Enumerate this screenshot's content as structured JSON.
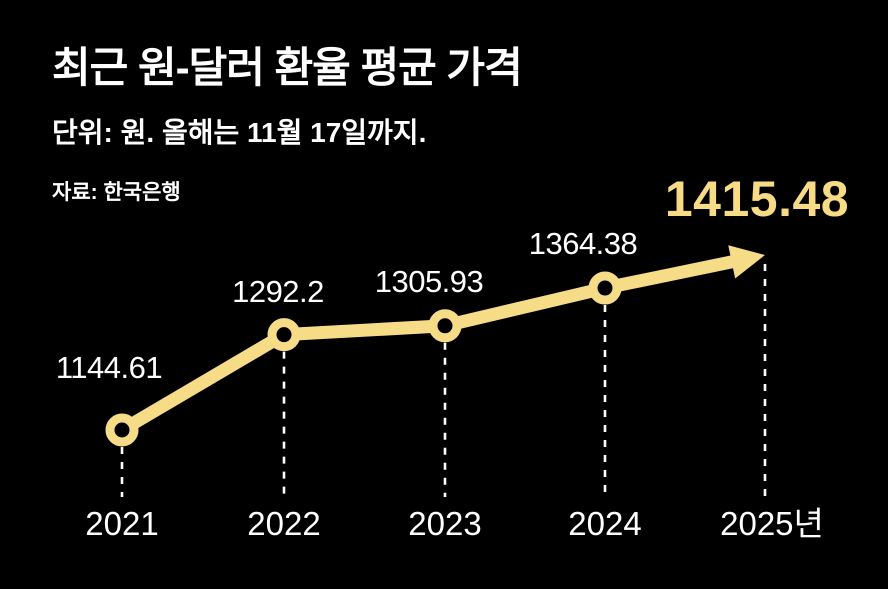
{
  "header": {
    "title": "최근 원-달러 환율 평균 가격",
    "subtitle": "단위: 원. 올해는 11월 17일까지.",
    "source": "자료: 한국은행"
  },
  "chart_data": {
    "type": "line",
    "title": "최근 원-달러 환율 평균 가격",
    "subtitle": "단위: 원. 올해는 11월 17일까지.",
    "source": "자료: 한국은행",
    "categories": [
      "2021",
      "2022",
      "2023",
      "2024",
      "2025년"
    ],
    "values": [
      1144.61,
      1292.2,
      1305.93,
      1364.38,
      1415.48
    ],
    "value_labels": [
      "1144.61",
      "1292.2",
      "1305.93",
      "1364.38",
      "1415.48"
    ],
    "highlight_index": 4,
    "ylim": [
      1100,
      1450
    ],
    "xlabel": "",
    "ylabel": "원",
    "grid": false,
    "legend": "none",
    "marker": "open-circle",
    "last_segment": "arrow",
    "guide_lines": "dashed-vertical",
    "colors": {
      "background": "#000000",
      "line": "#F7DC88",
      "highlight_text": "#F7DB85",
      "text": "#FFFFFF",
      "guide": "#FFFFFF"
    }
  }
}
